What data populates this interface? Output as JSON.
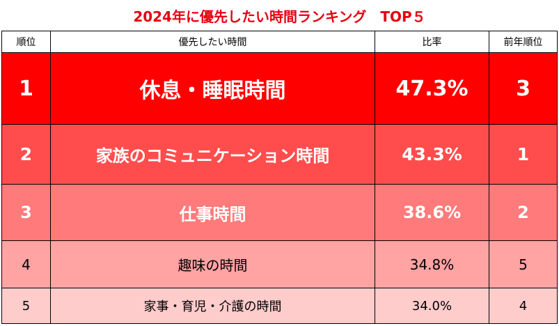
{
  "title": "2024年に優先したい時間ランキング　TOP５",
  "columns": [
    "順位",
    "優先したい時間",
    "比率",
    "前年順位"
  ],
  "rows": [
    {
      "rank": "1",
      "name": "休息・睡眠時間",
      "ratio": "47.3%",
      "prev": "3"
    },
    {
      "rank": "2",
      "name": "家族のコミュニケーション時間",
      "ratio": "43.3%",
      "prev": "1"
    },
    {
      "rank": "3",
      "name": "仕事時間",
      "ratio": "38.6%",
      "prev": "2"
    },
    {
      "rank": "4",
      "name": "趣味の時間",
      "ratio": "34.8%",
      "prev": "5"
    },
    {
      "rank": "5",
      "name": "家事・育児・介護の時間",
      "ratio": "34.0%",
      "prev": "4"
    }
  ],
  "colors": {
    "title": "#e60012",
    "row1": "#ff0000",
    "row2": "#ff4d4d",
    "row3": "#ff7a7a",
    "row4": "#ffa3a3",
    "row5": "#ffcccc"
  }
}
